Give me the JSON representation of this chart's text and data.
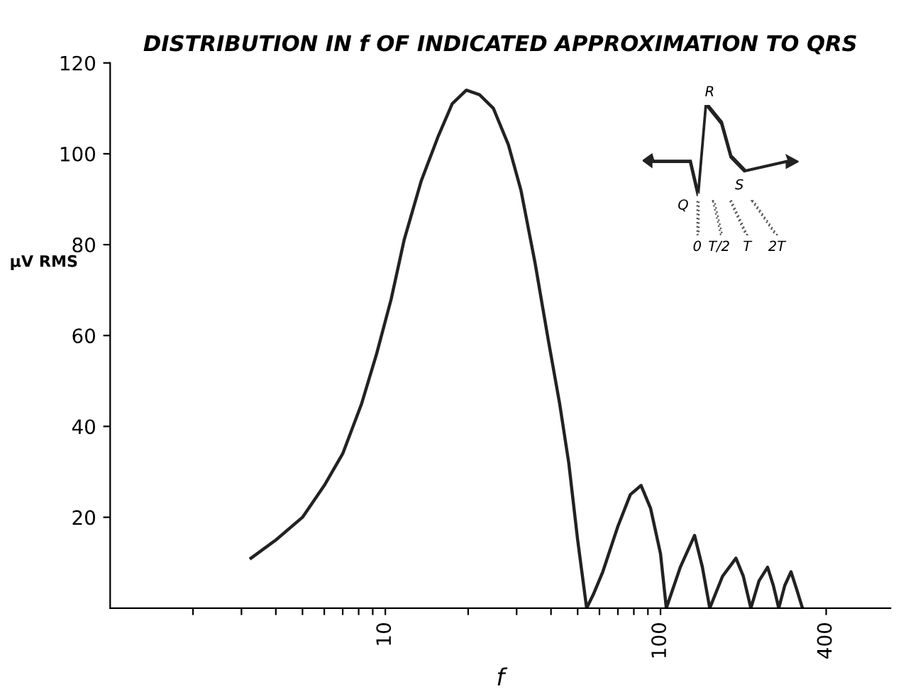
{
  "chart_data": {
    "type": "line",
    "title": "DISTRIBUTION IN f OF INDICATED APPROXIMATION TO QRS",
    "xlabel": "f",
    "ylabel": "μV RMS",
    "log": "x",
    "grid": false,
    "legend": false,
    "marker": "none",
    "line_style": "solid",
    "x": [
      3.25,
      4.0,
      5.0,
      6.0,
      7.0,
      8.2,
      9.3,
      10.5,
      11.7,
      13.5,
      15.6,
      17.5,
      19.7,
      22,
      24.7,
      28,
      31.1,
      35,
      39.1,
      43,
      46.4,
      50,
      53.9,
      57,
      61.7,
      70,
      77.7,
      85,
      92,
      100,
      105,
      118,
      133,
      142,
      151,
      168,
      188,
      200,
      213,
      228,
      245,
      257,
      269,
      283,
      298,
      313,
      328
    ],
    "series": [
      {
        "color": "#222222",
        "values": [
          11,
          15,
          20,
          27,
          34,
          45,
          56,
          68,
          81,
          94,
          104,
          111,
          114,
          113,
          110,
          102,
          92,
          76,
          59,
          45,
          32,
          15,
          0,
          3,
          8,
          18,
          25,
          27,
          22,
          12,
          0,
          9,
          16,
          9,
          0,
          7,
          11,
          7,
          0,
          6,
          9,
          5,
          0,
          5,
          8,
          4,
          0
        ]
      }
    ],
    "xlim": [
      1,
      685
    ],
    "ylim": [
      0,
      120
    ],
    "xticks": [
      {
        "value": 2,
        "label": null
      },
      {
        "value": 3,
        "label": null
      },
      {
        "value": 4,
        "label": null
      },
      {
        "value": 5,
        "label": null
      },
      {
        "value": 6,
        "label": null
      },
      {
        "value": 7,
        "label": null
      },
      {
        "value": 8,
        "label": null
      },
      {
        "value": 9,
        "label": null
      },
      10,
      {
        "value": 20,
        "label": null
      },
      {
        "value": 30,
        "label": null
      },
      {
        "value": 40,
        "label": null
      },
      {
        "value": 50,
        "label": null
      },
      {
        "value": 60,
        "label": null
      },
      {
        "value": 70,
        "label": null
      },
      {
        "value": 80,
        "label": null
      },
      {
        "value": 90,
        "label": null
      },
      100,
      400
    ],
    "yticks": [
      20,
      40,
      60,
      80,
      100,
      120
    ],
    "annotations": [
      "R",
      "Q",
      "S",
      "0",
      "T/2",
      "T",
      "2T"
    ]
  }
}
